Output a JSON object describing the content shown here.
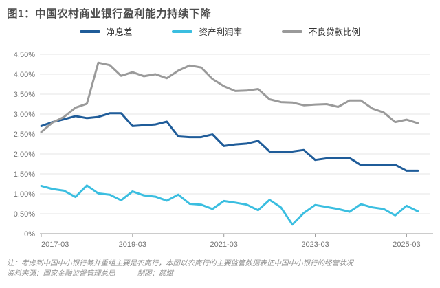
{
  "page": {
    "title": "图1：中国农村商业银行盈利能力持续下降",
    "note_line1": "注：考虑到中国中小银行兼并重组主要是农商行，本图以农商行的主要监管数据表征中国中小银行的经营状况",
    "source": "资料来源：国家金融监督管理总局",
    "credit": "制图：颜斌"
  },
  "chart_data": {
    "type": "line",
    "title": "中国农村商业银行盈利能力持续下降",
    "xlabel": "",
    "ylabel": "",
    "y_unit": "%",
    "ylim": [
      0,
      4.5
    ],
    "y_step": 0.5,
    "grid": true,
    "legend_position": "top",
    "x_tick_every": 8,
    "x_tick_labels": [
      "2017-03",
      "2019-03",
      "2021-03",
      "2023-03",
      "2025-03"
    ],
    "categories": [
      "2017-03",
      "2017-06",
      "2017-09",
      "2017-12",
      "2018-03",
      "2018-06",
      "2018-09",
      "2018-12",
      "2019-03",
      "2019-06",
      "2019-09",
      "2019-12",
      "2020-03",
      "2020-06",
      "2020-09",
      "2020-12",
      "2021-03",
      "2021-06",
      "2021-09",
      "2021-12",
      "2022-03",
      "2022-06",
      "2022-09",
      "2022-12",
      "2023-03",
      "2023-06",
      "2023-09",
      "2023-12",
      "2024-03",
      "2024-06",
      "2024-09",
      "2024-12",
      "2025-03",
      "2025-06"
    ],
    "series": [
      {
        "name": "净息差",
        "color": "#1F5C99",
        "values": [
          2.7,
          2.8,
          2.87,
          2.95,
          2.9,
          2.93,
          3.02,
          3.02,
          2.7,
          2.72,
          2.74,
          2.81,
          2.44,
          2.42,
          2.42,
          2.49,
          2.2,
          2.24,
          2.26,
          2.33,
          2.06,
          2.06,
          2.06,
          2.1,
          1.85,
          1.89,
          1.89,
          1.9,
          1.72,
          1.72,
          1.72,
          1.73,
          1.58,
          1.58
        ]
      },
      {
        "name": "资产利润率",
        "color": "#3BBEE0",
        "values": [
          1.2,
          1.12,
          1.08,
          0.92,
          1.21,
          1.01,
          0.98,
          0.84,
          1.06,
          0.96,
          0.93,
          0.83,
          0.98,
          0.75,
          0.73,
          0.62,
          0.82,
          0.78,
          0.73,
          0.59,
          0.85,
          0.66,
          0.23,
          0.52,
          0.72,
          0.67,
          0.62,
          0.55,
          0.74,
          0.66,
          0.62,
          0.46,
          0.7,
          0.56
        ]
      },
      {
        "name": "不良贷款比例",
        "color": "#9A9A9A",
        "values": [
          2.55,
          2.79,
          2.93,
          3.16,
          3.26,
          4.29,
          4.23,
          3.96,
          4.05,
          3.95,
          4.0,
          3.9,
          4.09,
          4.22,
          4.17,
          3.88,
          3.7,
          3.58,
          3.59,
          3.63,
          3.37,
          3.3,
          3.29,
          3.22,
          3.24,
          3.25,
          3.18,
          3.34,
          3.34,
          3.14,
          3.04,
          2.8,
          2.86,
          2.77
        ]
      }
    ],
    "axis_colors": {
      "grid": "#e4e4e4",
      "axis": "#9a9a9a",
      "tick_label": "#737373"
    }
  }
}
